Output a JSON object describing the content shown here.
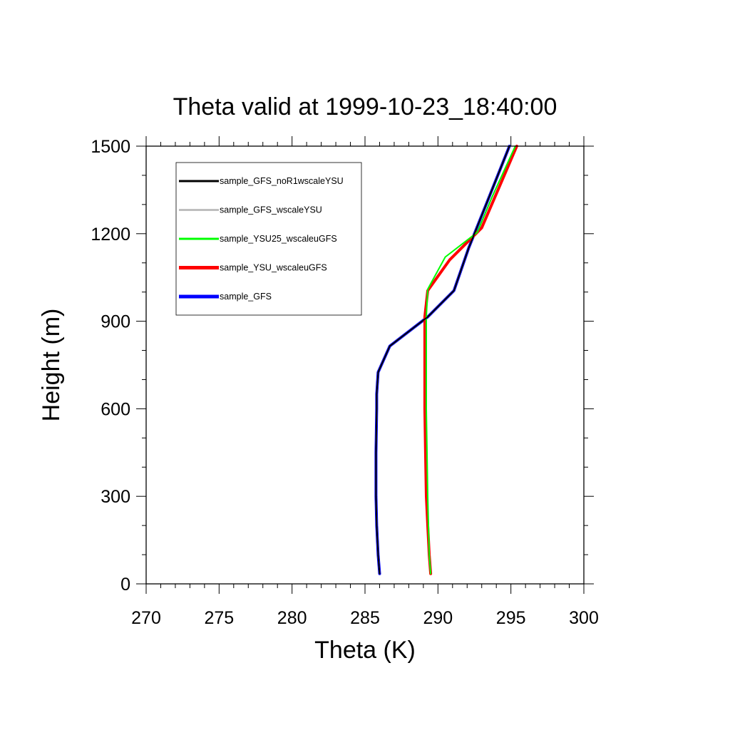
{
  "chart_data": {
    "type": "line",
    "title": "Theta valid at 1999-10-23_18:40:00",
    "xlabel": "Theta (K)",
    "ylabel": "Height (m)",
    "xlim": [
      270,
      300
    ],
    "ylim": [
      0,
      1500
    ],
    "xticks": [
      270,
      275,
      280,
      285,
      290,
      295,
      300
    ],
    "yticks": [
      0,
      300,
      600,
      900,
      1200,
      1500
    ],
    "xtick_labels": [
      "270",
      "275",
      "280",
      "285",
      "290",
      "295",
      "300"
    ],
    "ytick_labels": [
      "0",
      "300",
      "600",
      "900",
      "1200",
      "1500"
    ],
    "grid": false,
    "legend_position": "top-left",
    "series": [
      {
        "name": "sample_GFS",
        "color": "#0000ff",
        "width": 4,
        "x": [
          286.0,
          285.9,
          285.8,
          285.75,
          285.75,
          285.8,
          285.8,
          285.9,
          286.7,
          289.3,
          291.1,
          292.1,
          293.5,
          294.9
        ],
        "y": [
          35,
          100,
          200,
          300,
          450,
          600,
          650,
          725,
          815,
          915,
          1005,
          1150,
          1325,
          1500
        ]
      },
      {
        "name": "sample_YSU_wscaleuGFS",
        "color": "#ff0000",
        "width": 4,
        "x": [
          289.5,
          289.4,
          289.3,
          289.2,
          289.15,
          289.1,
          289.1,
          289.1,
          289.1,
          289.1,
          289.3,
          290.8,
          293.0,
          293.9,
          295.4
        ],
        "y": [
          35,
          100,
          200,
          300,
          450,
          600,
          650,
          725,
          815,
          915,
          1005,
          1110,
          1220,
          1325,
          1500
        ]
      },
      {
        "name": "sample_YSU25_wscaleuGFS",
        "color": "#00ff00",
        "width": 2,
        "x": [
          289.5,
          289.4,
          289.35,
          289.3,
          289.25,
          289.2,
          289.2,
          289.2,
          289.2,
          289.2,
          289.3,
          290.5,
          292.7,
          293.7,
          295.3
        ],
        "y": [
          35,
          100,
          200,
          300,
          450,
          600,
          650,
          725,
          815,
          915,
          1010,
          1120,
          1205,
          1325,
          1500
        ]
      },
      {
        "name": "sample_GFS_wscaleYSU",
        "color": "#bebebe",
        "width": 2,
        "x": [
          286.0,
          285.9,
          285.8,
          285.75,
          285.75,
          285.8,
          285.8,
          285.9,
          286.7,
          289.3,
          291.1,
          292.1,
          293.5,
          294.9
        ],
        "y": [
          35,
          100,
          200,
          300,
          450,
          600,
          650,
          725,
          815,
          915,
          1005,
          1150,
          1325,
          1500
        ]
      },
      {
        "name": "sample_GFS_noR1wscaleYSU",
        "color": "#000000",
        "width": 2,
        "x": [
          286.0,
          285.9,
          285.8,
          285.75,
          285.75,
          285.8,
          285.8,
          285.9,
          286.7,
          289.3,
          291.1,
          292.1,
          293.5,
          294.9
        ],
        "y": [
          35,
          100,
          200,
          300,
          450,
          600,
          650,
          725,
          815,
          915,
          1005,
          1150,
          1325,
          1500
        ]
      }
    ],
    "legend_entries": [
      {
        "name": "sample_GFS_noR1wscaleYSU",
        "color": "#000000",
        "width": 3
      },
      {
        "name": "sample_GFS_wscaleYSU",
        "color": "#bebebe",
        "width": 3
      },
      {
        "name": "sample_YSU25_wscaleuGFS",
        "color": "#00ff00",
        "width": 3
      },
      {
        "name": "sample_YSU_wscaleuGFS",
        "color": "#ff0000",
        "width": 5
      },
      {
        "name": "sample_GFS",
        "color": "#0000ff",
        "width": 5
      }
    ]
  }
}
